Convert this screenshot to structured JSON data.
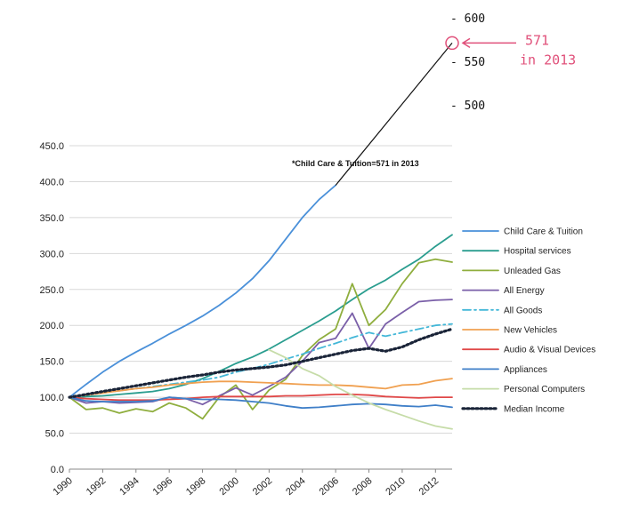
{
  "chart_data": {
    "type": "line",
    "title": "",
    "xlabel": "",
    "ylabel": "",
    "ylim": [
      0,
      450
    ],
    "xlim": [
      1990,
      2013
    ],
    "y_ticks": [
      "0.0",
      "50.0",
      "100.0",
      "150.0",
      "200.0",
      "250.0",
      "300.0",
      "350.0",
      "400.0",
      "450.0"
    ],
    "x_ticks": [
      "1990",
      "1992",
      "1994",
      "1996",
      "1998",
      "2000",
      "2002",
      "2004",
      "2006",
      "2008",
      "2010",
      "2012"
    ],
    "grid": "horizontal",
    "legend_position": "right",
    "x": [
      1990,
      1991,
      1992,
      1993,
      1994,
      1995,
      1996,
      1997,
      1998,
      1999,
      2000,
      2001,
      2002,
      2003,
      2004,
      2005,
      2006,
      2007,
      2008,
      2009,
      2010,
      2011,
      2012,
      2013
    ],
    "series": [
      {
        "name": "Child Care & Tuition",
        "color": "#4a90d9",
        "style": "solid",
        "values": [
          100,
          118,
          135,
          150,
          163,
          175,
          188,
          200,
          213,
          228,
          245,
          265,
          290,
          320,
          350,
          375,
          395,
          null,
          null,
          null,
          null,
          null,
          null,
          null
        ]
      },
      {
        "name": "Hospital services",
        "color": "#2a9d8f",
        "style": "solid",
        "values": [
          100,
          101,
          102,
          104,
          106,
          108,
          112,
          118,
          126,
          136,
          147,
          156,
          167,
          180,
          193,
          206,
          220,
          236,
          251,
          263,
          278,
          292,
          310,
          326
        ]
      },
      {
        "name": "Unleaded Gas",
        "color": "#8fae3e",
        "style": "solid",
        "values": [
          100,
          83,
          85,
          78,
          84,
          80,
          92,
          85,
          70,
          100,
          117,
          83,
          110,
          125,
          158,
          180,
          195,
          258,
          200,
          222,
          258,
          287,
          292,
          288
        ]
      },
      {
        "name": "All Energy",
        "color": "#7a5fa8",
        "style": "solid",
        "values": [
          100,
          92,
          94,
          92,
          93,
          94,
          100,
          98,
          90,
          102,
          113,
          103,
          115,
          128,
          150,
          176,
          182,
          217,
          168,
          202,
          218,
          233,
          235,
          236
        ]
      },
      {
        "name": "All Goods",
        "color": "#43b7d8",
        "style": "dashdot",
        "values": [
          100,
          103,
          106,
          109,
          112,
          115,
          118,
          121,
          124,
          128,
          135,
          140,
          146,
          153,
          160,
          168,
          175,
          183,
          190,
          185,
          190,
          195,
          200,
          202
        ]
      },
      {
        "name": "New Vehicles",
        "color": "#f0a050",
        "style": "solid",
        "values": [
          100,
          103,
          106,
          109,
          112,
          114,
          117,
          119,
          121,
          122,
          122,
          121,
          120,
          119,
          118,
          117,
          117,
          116,
          114,
          112,
          117,
          118,
          123,
          126
        ]
      },
      {
        "name": "Audio & Visual Devices",
        "color": "#e04848",
        "style": "solid",
        "values": [
          100,
          98,
          97,
          96,
          96,
          96,
          97,
          98,
          100,
          101,
          101,
          101,
          101,
          102,
          102,
          103,
          104,
          104,
          103,
          101,
          100,
          99,
          100,
          100
        ]
      },
      {
        "name": "Appliances",
        "color": "#3f7fc8",
        "style": "solid",
        "values": [
          100,
          95,
          94,
          94,
          94,
          95,
          100,
          98,
          97,
          97,
          96,
          94,
          92,
          88,
          85,
          86,
          88,
          90,
          91,
          90,
          88,
          87,
          89,
          86
        ]
      },
      {
        "name": "Personal Computers",
        "color": "#c6dca8",
        "style": "solid",
        "values": [
          null,
          null,
          null,
          null,
          null,
          null,
          null,
          null,
          null,
          null,
          null,
          null,
          166,
          155,
          140,
          130,
          115,
          103,
          92,
          83,
          75,
          67,
          60,
          56
        ]
      },
      {
        "name": "Median Income",
        "color": "#1a2438",
        "style": "dotted",
        "values": [
          100,
          104,
          108,
          112,
          116,
          120,
          124,
          128,
          131,
          135,
          138,
          140,
          142,
          145,
          150,
          155,
          160,
          165,
          168,
          164,
          170,
          180,
          188,
          195
        ]
      }
    ],
    "annotation": "*Child Care & Tuition=571 in 2013",
    "extension_target": {
      "x": 2013,
      "y": 571
    }
  },
  "handwritten": {
    "scale_labels": [
      {
        "text": "- 600",
        "value": 600
      },
      {
        "text": "- 550",
        "value": 550
      },
      {
        "text": "- 500",
        "value": 500
      }
    ],
    "callout_value": "571",
    "callout_year": "in 2013"
  }
}
